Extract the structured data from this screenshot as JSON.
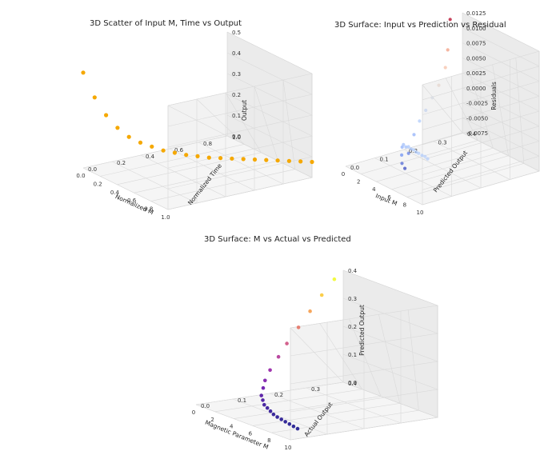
{
  "chart_data": [
    {
      "type": "scatter",
      "title": "3D Scatter of Input M, Time vs Output",
      "xlabel": "Normalized M",
      "ylabel": "Normalized Time",
      "zlabel": "Output",
      "xlim": [
        0,
        1
      ],
      "ylim": [
        0,
        1
      ],
      "zlim": [
        -0.05,
        0.55
      ],
      "xticks": [
        "0.0",
        "0.2",
        "0.4",
        "0.6",
        "0.8",
        "1.0"
      ],
      "yticks": [
        "0.0",
        "0.2",
        "0.4",
        "0.6",
        "0.8",
        "1.0"
      ],
      "zticks": [
        "0.0",
        "0.1",
        "0.2",
        "0.3",
        "0.4",
        "0.5"
      ],
      "color": "#f5a800",
      "x": [
        0.0,
        0.05,
        0.1,
        0.15,
        0.2,
        0.25,
        0.3,
        0.35,
        0.4,
        0.45,
        0.5,
        0.55,
        0.6,
        0.65,
        0.7,
        0.75,
        0.8,
        0.85,
        0.9,
        0.95,
        1.0
      ],
      "y": [
        0.0,
        0.05,
        0.1,
        0.15,
        0.2,
        0.25,
        0.3,
        0.35,
        0.4,
        0.45,
        0.5,
        0.55,
        0.6,
        0.65,
        0.7,
        0.75,
        0.8,
        0.85,
        0.9,
        0.95,
        1.0
      ],
      "z": [
        0.5,
        0.36,
        0.26,
        0.19,
        0.14,
        0.11,
        0.09,
        0.07,
        0.06,
        0.05,
        0.045,
        0.04,
        0.04,
        0.04,
        0.04,
        0.04,
        0.04,
        0.04,
        0.04,
        0.04,
        0.04
      ]
    },
    {
      "type": "scatter",
      "title": "3D Surface: Input vs Prediction vs Residual",
      "xlabel": "Input M",
      "ylabel": "Predicted Output",
      "zlabel": "Residuals",
      "xlim": [
        0,
        10
      ],
      "ylim": [
        0,
        0.45
      ],
      "zlim": [
        -0.0095,
        0.014
      ],
      "xticks": [
        "0",
        "2",
        "4",
        "6",
        "8",
        "10"
      ],
      "yticks": [
        "0.0",
        "0.1",
        "0.2",
        "0.3",
        "0.4"
      ],
      "zticks": [
        "-0.0075",
        "-0.0050",
        "-0.0025",
        "0.0000",
        "0.0025",
        "0.0050",
        "0.0075",
        "0.0100",
        "0.0125"
      ],
      "colormap": "coolwarm",
      "x": [
        0.1,
        0.8,
        1.5,
        2.0,
        2.5,
        3.0,
        3.2,
        3.5,
        3.8,
        4.0,
        4.3,
        4.6,
        5.0,
        5.5,
        6.0,
        6.5,
        7.0,
        7.5,
        8.0,
        8.5,
        9.0,
        9.5,
        10.0
      ],
      "y": [
        0.4,
        0.37,
        0.34,
        0.3,
        0.26,
        0.22,
        0.19,
        0.16,
        0.13,
        0.11,
        0.09,
        0.08,
        0.07,
        0.06,
        0.055,
        0.05,
        0.045,
        0.04,
        0.035,
        0.03,
        0.028,
        0.025,
        0.02
      ],
      "z": [
        0.0135,
        0.0085,
        0.006,
        0.0035,
        0.002,
        0.0005,
        -0.001,
        -0.003,
        -0.006,
        -0.0085,
        -0.007,
        -0.005,
        -0.003,
        -0.002,
        -0.002,
        -0.0015,
        -0.0015,
        -0.0012,
        -0.0012,
        -0.001,
        -0.001,
        -0.0008,
        -0.0008
      ]
    },
    {
      "type": "scatter",
      "title": "3D Surface: M vs Actual vs Predicted",
      "xlabel": "Magnetic Parameter M",
      "ylabel": "Actual Output",
      "zlabel": "Predicted Output",
      "xlim": [
        0,
        10
      ],
      "ylim": [
        0,
        0.45
      ],
      "zlim": [
        -0.02,
        0.45
      ],
      "xticks": [
        "0",
        "2",
        "4",
        "6",
        "8",
        "10"
      ],
      "yticks": [
        "0.0",
        "0.1",
        "0.2",
        "0.3",
        "0.4"
      ],
      "zticks": [
        "0.0",
        "0.1",
        "0.2",
        "0.3",
        "0.4"
      ],
      "colormap": "plasma",
      "x": [
        0.1,
        0.5,
        1.0,
        1.5,
        2.0,
        2.5,
        3.0,
        3.5,
        4.0,
        4.5,
        5.0,
        5.5,
        6.0,
        6.5,
        7.0,
        7.5,
        8.0,
        8.5,
        9.0,
        9.5,
        10.0
      ],
      "y": [
        0.42,
        0.37,
        0.32,
        0.27,
        0.22,
        0.18,
        0.14,
        0.11,
        0.09,
        0.07,
        0.06,
        0.05,
        0.045,
        0.04,
        0.035,
        0.032,
        0.03,
        0.028,
        0.026,
        0.024,
        0.022
      ],
      "z": [
        0.42,
        0.37,
        0.32,
        0.27,
        0.22,
        0.18,
        0.14,
        0.11,
        0.09,
        0.07,
        0.06,
        0.05,
        0.045,
        0.04,
        0.035,
        0.032,
        0.03,
        0.028,
        0.026,
        0.024,
        0.022
      ]
    }
  ]
}
